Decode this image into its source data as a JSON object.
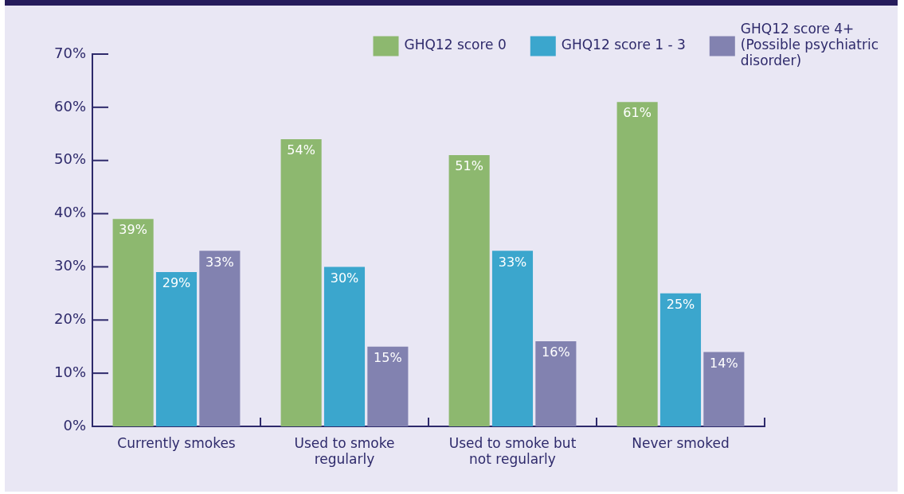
{
  "chart_data": {
    "type": "bar",
    "categories": [
      "Currently smokes",
      "Used to smoke regularly",
      "Used to smoke but not regularly",
      "Never smoked"
    ],
    "series": [
      {
        "name": "GHQ12 score 0",
        "color": "#8db86f",
        "values": [
          39,
          54,
          51,
          61
        ],
        "value_labels": [
          "39%",
          "54%",
          "51%",
          "61%"
        ]
      },
      {
        "name": "GHQ12 score 1 - 3",
        "color": "#3ba6cd",
        "values": [
          29,
          30,
          33,
          25
        ],
        "value_labels": [
          "29%",
          "30%",
          "33%",
          "25%"
        ]
      },
      {
        "name": "GHQ12 score 4+ (Possible psychiatric disorder)",
        "color": "#8282b0",
        "values": [
          33,
          15,
          16,
          14
        ],
        "value_labels": [
          "33%",
          "15%",
          "16%",
          "14%"
        ]
      }
    ],
    "ylim": [
      0,
      70
    ],
    "yticks": [
      {
        "value": 0,
        "label": "0%"
      },
      {
        "value": 10,
        "label": "10%"
      },
      {
        "value": 20,
        "label": "20%"
      },
      {
        "value": 30,
        "label": "30%"
      },
      {
        "value": 40,
        "label": "40%"
      },
      {
        "value": 50,
        "label": "50%"
      },
      {
        "value": 60,
        "label": "60%"
      },
      {
        "value": 70,
        "label": "70%"
      }
    ],
    "grid": false,
    "legend": "top right"
  }
}
